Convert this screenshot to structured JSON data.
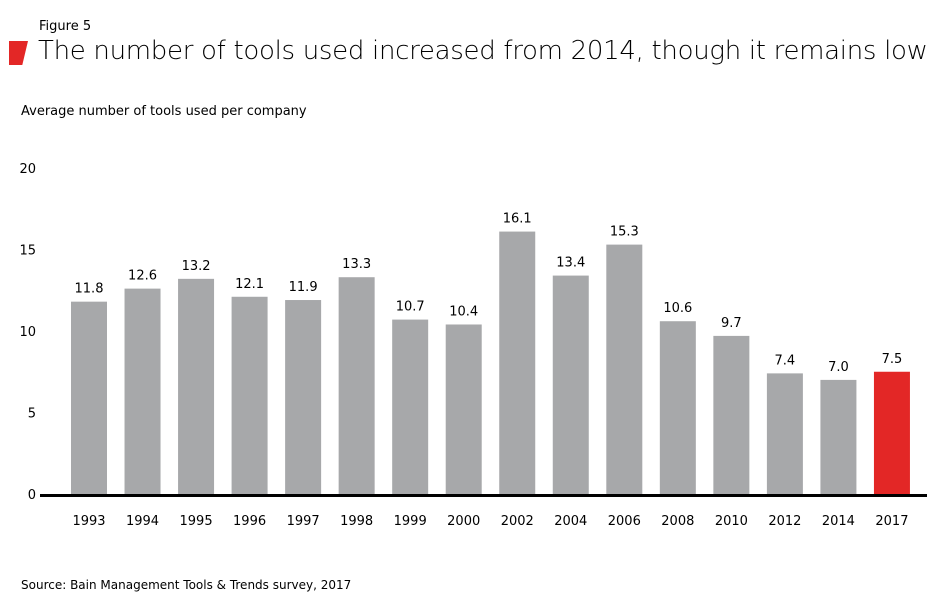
{
  "figure_label": "Figure 5",
  "title": "The number of tools used increased from 2014, though it remains low",
  "source": "Source: Bain Management Tools & Trends survey, 2017",
  "chart_data": {
    "type": "bar",
    "title": "The number of tools used increased from 2014, though it remains low",
    "ylabel": "Average number of tools used per company",
    "xlabel": "",
    "categories": [
      "1993",
      "1994",
      "1995",
      "1996",
      "1997",
      "1998",
      "1999",
      "2000",
      "2002",
      "2004",
      "2006",
      "2008",
      "2010",
      "2012",
      "2014",
      "2017"
    ],
    "values": [
      11.8,
      12.6,
      13.2,
      12.1,
      11.9,
      13.3,
      10.7,
      10.4,
      16.1,
      13.4,
      15.3,
      10.6,
      9.7,
      7.4,
      7.0,
      7.5
    ],
    "labels": [
      "11.8",
      "12.6",
      "13.2",
      "12.1",
      "11.9",
      "13.3",
      "10.7",
      "10.4",
      "16.1",
      "13.4",
      "15.3",
      "10.6",
      "9.7",
      "7.4",
      "7.0",
      "7.5"
    ],
    "yticks": [
      0,
      5,
      10,
      15,
      20
    ],
    "ylim": [
      0,
      20
    ],
    "grid": false,
    "colors": {
      "default": "#a7a8aa",
      "highlight": "#e32726",
      "highlight_category": "2017"
    }
  }
}
